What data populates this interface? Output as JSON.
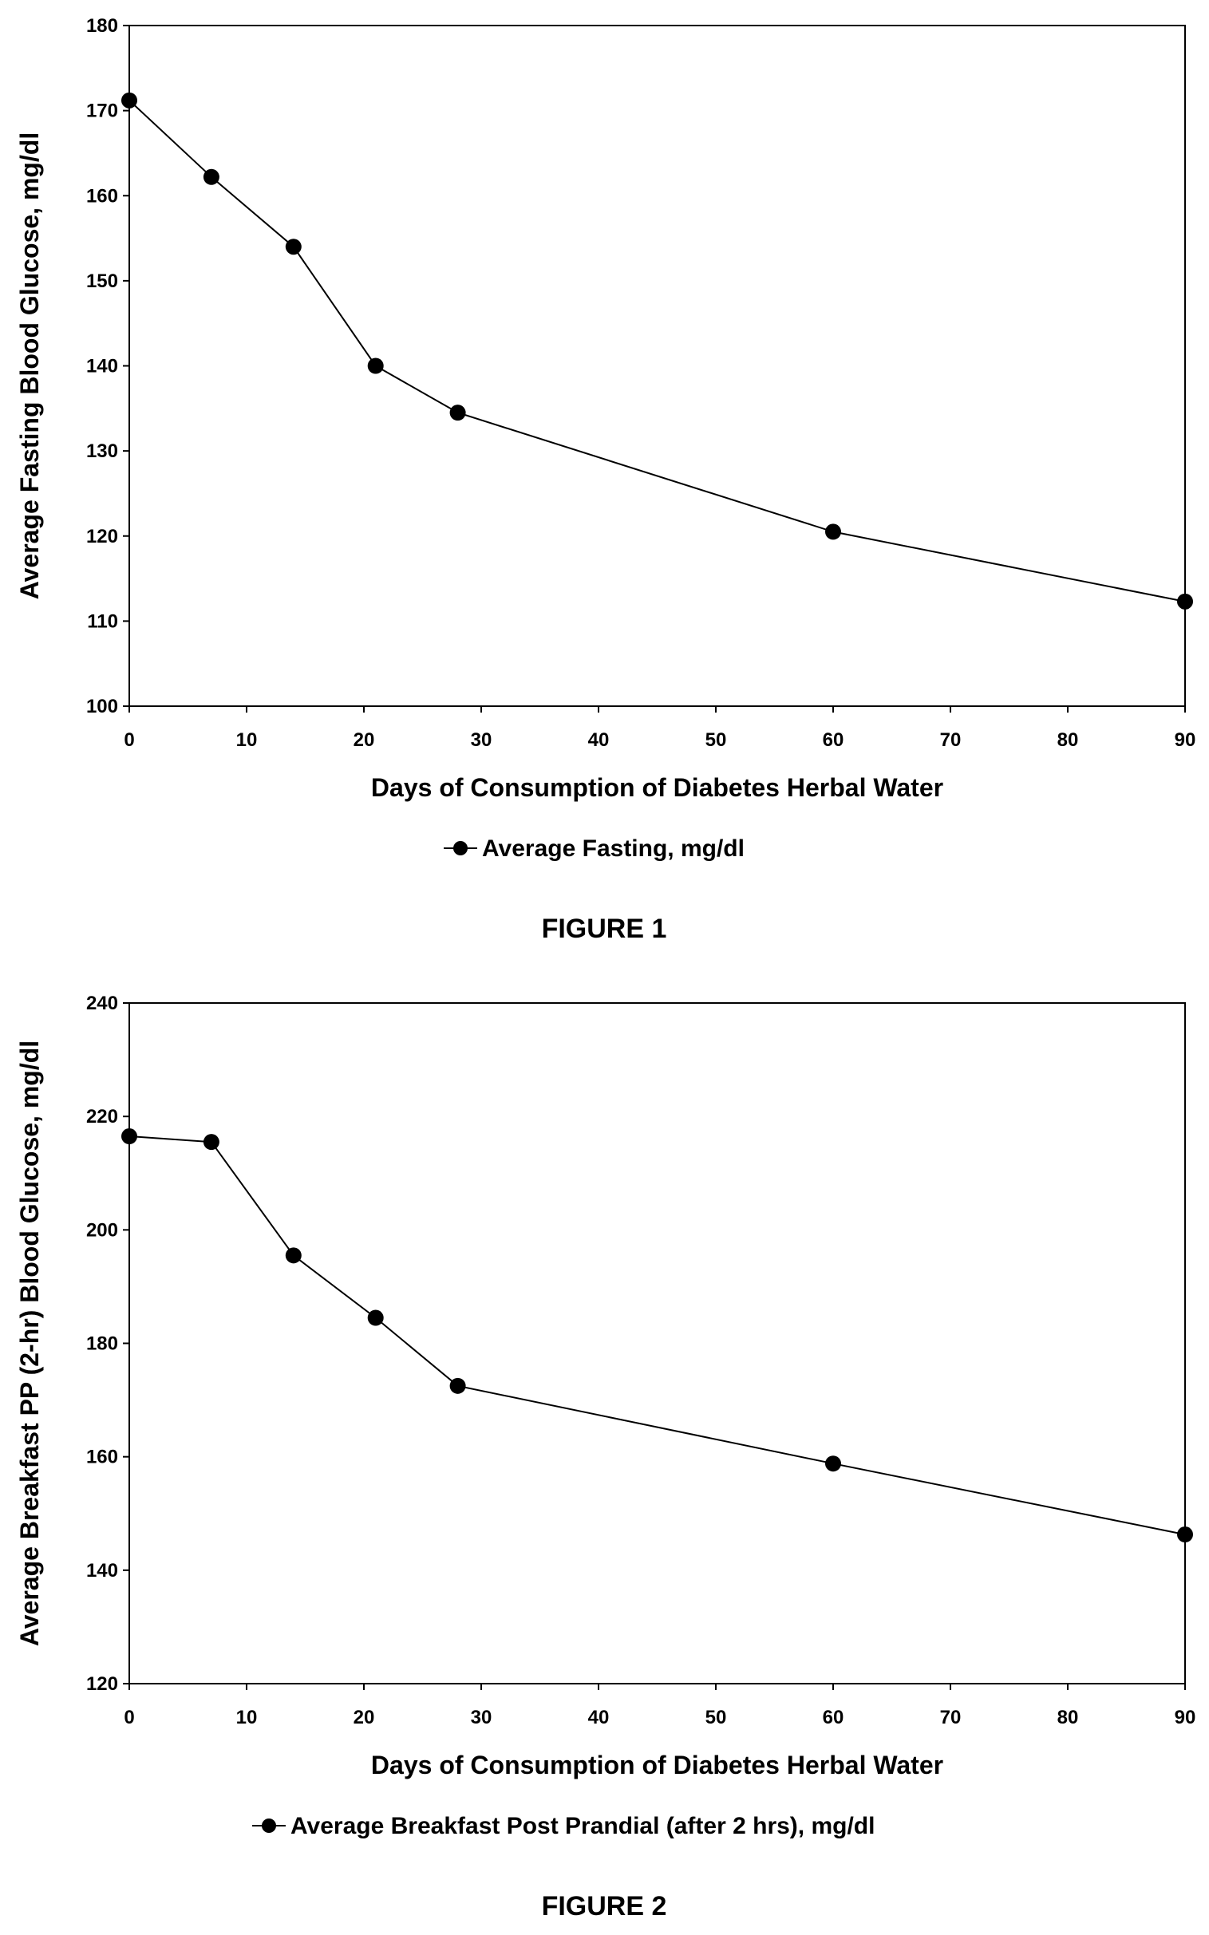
{
  "chart_data": [
    {
      "type": "line",
      "xlabel": "Days of Consumption of Diabetes Herbal Water",
      "ylabel": "Average Fasting Blood Glucose, mg/dl",
      "xlim": [
        0,
        90
      ],
      "ylim": [
        100,
        180
      ],
      "xticks": [
        "0",
        "10",
        "20",
        "30",
        "40",
        "50",
        "60",
        "70",
        "80",
        "90"
      ],
      "yticks": [
        "100",
        "110",
        "120",
        "130",
        "140",
        "150",
        "160",
        "170",
        "180"
      ],
      "grid": false,
      "legend_position": "bottom",
      "series": [
        {
          "name": "Average Fasting, mg/dl",
          "color": "#000000",
          "x": [
            0,
            7,
            14,
            21,
            28,
            60,
            90
          ],
          "values": [
            171.2,
            162.2,
            154.0,
            140.0,
            134.5,
            120.5,
            112.3
          ]
        }
      ],
      "caption": "FIGURE 1"
    },
    {
      "type": "line",
      "xlabel": "Days of Consumption of Diabetes Herbal Water",
      "ylabel": "Average Breakfast PP (2-hr) Blood Glucose, mg/dl",
      "xlim": [
        0,
        90
      ],
      "ylim": [
        120,
        240
      ],
      "xticks": [
        "0",
        "10",
        "20",
        "30",
        "40",
        "50",
        "60",
        "70",
        "80",
        "90"
      ],
      "yticks": [
        "120",
        "140",
        "160",
        "180",
        "200",
        "220",
        "240"
      ],
      "grid": false,
      "legend_position": "bottom",
      "series": [
        {
          "name": "Average Breakfast Post Prandial (after 2 hrs), mg/dl",
          "color": "#000000",
          "x": [
            0,
            7,
            14,
            21,
            28,
            60,
            90
          ],
          "values": [
            216.5,
            215.5,
            195.5,
            184.5,
            172.5,
            158.8,
            146.3
          ]
        }
      ],
      "caption": "FIGURE 2"
    }
  ]
}
